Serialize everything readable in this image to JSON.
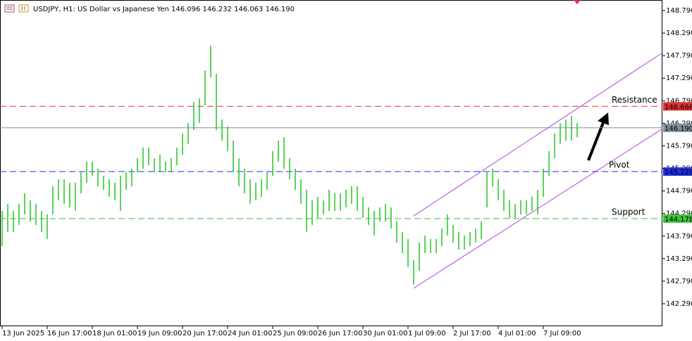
{
  "chart_data": {
    "type": "range-bars",
    "title": "USDJPY, H1:  US Dollar vs Japanese Yen  146.096 146.232 146.063 146.190",
    "color": "#22c422",
    "xlim": [
      -0.375,
      117.125
    ],
    "xticks": [
      {
        "value": 0,
        "label": "13 Jun 2025"
      },
      {
        "value": 8,
        "label": "16 Jun 17:00"
      },
      {
        "value": 16,
        "label": "18 Jun 01:00"
      },
      {
        "value": 24,
        "label": "19 Jun 09:00"
      },
      {
        "value": 32,
        "label": "20 Jun 17:00"
      },
      {
        "value": 40,
        "label": "24 Jun 01:00"
      },
      {
        "value": 48,
        "label": "25 Jun 09:00"
      },
      {
        "value": 56,
        "label": "26 Jun 17:00"
      },
      {
        "value": 64,
        "label": "30 Jun 01:00"
      },
      {
        "value": 72,
        "label": "1 Jul 09:00"
      },
      {
        "value": 80,
        "label": "2 Jul 17:00"
      },
      {
        "value": 88,
        "label": "4 Jul 01:00"
      },
      {
        "value": 96,
        "label": "7 Jul 09:00"
      }
    ],
    "ylim": [
      141.791,
      149.024
    ],
    "yticks": [
      {
        "value": 142.29,
        "label": "142.290"
      },
      {
        "value": 142.79,
        "label": "142.790"
      },
      {
        "value": 143.29,
        "label": "143.290"
      },
      {
        "value": 143.79,
        "label": "143.790"
      },
      {
        "value": 144.29,
        "label": "144.290"
      },
      {
        "value": 144.79,
        "label": "144.790"
      },
      {
        "value": 145.29,
        "label": "145.290"
      },
      {
        "value": 145.79,
        "label": "145.790"
      },
      {
        "value": 146.29,
        "label": "146.290"
      },
      {
        "value": 146.79,
        "label": "146.790"
      },
      {
        "value": 147.29,
        "label": "147.290"
      },
      {
        "value": 147.79,
        "label": "147.790"
      },
      {
        "value": 148.29,
        "label": "148.290"
      },
      {
        "value": 148.79,
        "label": "148.790"
      }
    ],
    "high": [
      144.347,
      144.503,
      144.347,
      144.503,
      144.737,
      144.581,
      144.503,
      144.347,
      144.27,
      144.893,
      145.049,
      145.049,
      144.971,
      144.971,
      145.205,
      145.439,
      145.439,
      145.283,
      145.127,
      145.049,
      144.971,
      145.127,
      145.205,
      145.283,
      145.517,
      145.751,
      145.751,
      145.517,
      145.595,
      145.439,
      145.517,
      145.751,
      146.062,
      146.296,
      146.764,
      146.842,
      147.465,
      148.011,
      147.387,
      146.374,
      146.218,
      145.906,
      145.517,
      145.283,
      145.049,
      144.971,
      145.049,
      145.205,
      145.673,
      145.906,
      145.984,
      145.517,
      145.283,
      145.049,
      144.815,
      144.581,
      144.659,
      144.581,
      144.815,
      144.737,
      144.737,
      144.815,
      144.893,
      144.893,
      144.659,
      144.425,
      144.347,
      144.425,
      144.503,
      144.425,
      144.114,
      143.88,
      143.724,
      143.256,
      143.646,
      143.802,
      143.724,
      143.724,
      143.958,
      144.27,
      144.036,
      143.88,
      143.802,
      143.88,
      143.958,
      144.114,
      145.205,
      145.283,
      145.049,
      144.815,
      144.581,
      144.503,
      144.581,
      144.581,
      144.659,
      144.815,
      145.283,
      145.673,
      146.062,
      146.296,
      146.374,
      146.452,
      146.296
    ],
    "low": [
      143.568,
      143.88,
      143.88,
      144.036,
      144.27,
      144.114,
      144.036,
      143.88,
      143.724,
      144.27,
      144.581,
      144.503,
      144.425,
      144.347,
      144.737,
      144.971,
      145.127,
      144.893,
      144.815,
      144.659,
      144.581,
      144.347,
      144.815,
      144.893,
      145.205,
      145.283,
      145.361,
      145.205,
      145.205,
      145.205,
      145.205,
      145.361,
      145.595,
      145.828,
      146.14,
      146.296,
      146.686,
      147.309,
      146.14,
      145.906,
      145.673,
      145.205,
      144.893,
      144.737,
      144.503,
      144.581,
      144.659,
      144.815,
      145.127,
      145.439,
      145.283,
      145.049,
      144.815,
      144.503,
      143.88,
      144.036,
      144.192,
      144.27,
      144.347,
      144.347,
      144.347,
      144.425,
      144.503,
      144.347,
      144.192,
      144.036,
      143.802,
      144.114,
      144.114,
      143.958,
      143.646,
      143.412,
      143.1,
      142.711,
      143.022,
      143.412,
      143.412,
      143.412,
      143.568,
      143.802,
      143.646,
      143.49,
      143.49,
      143.568,
      143.646,
      143.724,
      144.425,
      144.893,
      144.581,
      144.347,
      144.192,
      144.192,
      144.27,
      144.27,
      144.347,
      144.27,
      144.659,
      145.127,
      145.517,
      145.828,
      145.906,
      145.906,
      145.984
    ],
    "levels": [
      {
        "name": "Resistance",
        "price": {
          "value": 146.666,
          "label": "146.666"
        },
        "color": "#e03030",
        "dashed": true
      },
      {
        "price": {
          "value": 146.19,
          "label": "146.190"
        },
        "color": "#7f8f9a",
        "dashed": false
      },
      {
        "name": "Pivot",
        "price": {
          "value": 145.22,
          "label": "145.220"
        },
        "color": "#1f2fe0",
        "dashed": true
      },
      {
        "name": "Support",
        "price": {
          "value": 144.178,
          "label": "144.178"
        },
        "color": "#3cc43c",
        "dashed": true
      }
    ],
    "channel": {
      "color": "#b040e0",
      "upper": {
        "x": [
          73,
          117.125
        ],
        "y": [
          144.238,
          147.855
        ]
      },
      "lower": {
        "x": [
          73,
          117.125
        ],
        "y": [
          142.633,
          146.171
        ]
      }
    }
  }
}
